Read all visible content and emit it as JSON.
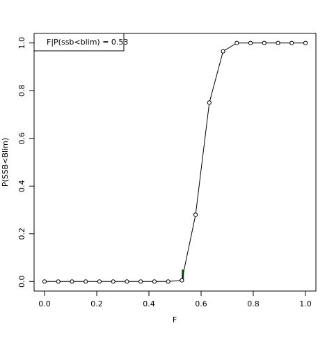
{
  "chart_data": {
    "type": "line",
    "x_label": "F",
    "y_label": "P(SSB<Blim)",
    "legend_text": "F|P(ssb<blim) =  0.53",
    "x": [
      0,
      0.0526,
      0.1053,
      0.1579,
      0.2105,
      0.2632,
      0.3158,
      0.3684,
      0.4211,
      0.4737,
      0.5263,
      0.5789,
      0.6316,
      0.6842,
      0.7368,
      0.7895,
      0.8421,
      0.8947,
      0.9474,
      1.0
    ],
    "series": [
      {
        "color": "#000000",
        "values": [
          0,
          0,
          0,
          0,
          0,
          0,
          0,
          0,
          0,
          0,
          0.005,
          0.28,
          0.75,
          0.965,
          1,
          1,
          1,
          1,
          1,
          1
        ]
      }
    ],
    "marker": {
      "x": 0.53,
      "y": [
        0,
        0.05
      ],
      "color": "#006400"
    },
    "xlim": [
      -0.04,
      1.04
    ],
    "ylim": [
      -0.04,
      1.04
    ],
    "xticks": [
      {
        "value": 0,
        "label": "0.0"
      },
      {
        "value": 0.2,
        "label": "0.2"
      },
      {
        "value": 0.4,
        "label": "0.4"
      },
      {
        "value": 0.6,
        "label": "0.6"
      },
      {
        "value": 0.8,
        "label": "0.8"
      },
      {
        "value": 1,
        "label": "1.0"
      }
    ],
    "yticks": [
      {
        "value": 0,
        "label": "0.0"
      },
      {
        "value": 0.2,
        "label": "0.2"
      },
      {
        "value": 0.4,
        "label": "0.4"
      },
      {
        "value": 0.6,
        "label": "0.6"
      },
      {
        "value": 0.8,
        "label": "0.8"
      },
      {
        "value": 1,
        "label": "1.0"
      }
    ]
  }
}
